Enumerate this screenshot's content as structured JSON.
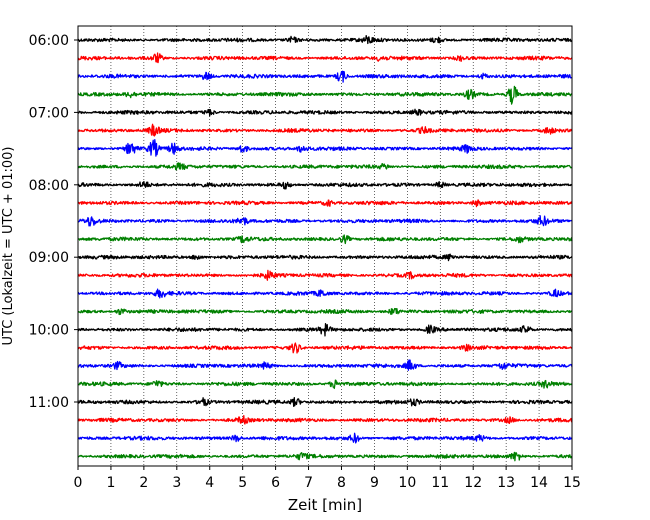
{
  "chart_data": {
    "type": "line",
    "xlabel": "Zeit  [min]",
    "ylabel": "UTC (Lokalzeit = UTC + 01:00)",
    "xlim": [
      0,
      15
    ],
    "x_ticks": [
      "0",
      "1",
      "2",
      "3",
      "4",
      "5",
      "6",
      "7",
      "8",
      "9",
      "10",
      "11",
      "12",
      "13",
      "14",
      "15"
    ],
    "y_ticks": [
      {
        "label": "06:00",
        "trace": 0
      },
      {
        "label": "07:00",
        "trace": 4
      },
      {
        "label": "08:00",
        "trace": 8
      },
      {
        "label": "09:00",
        "trace": 12
      },
      {
        "label": "10:00",
        "trace": 16
      },
      {
        "label": "11:00",
        "trace": 20
      }
    ],
    "grid": "vertical-dotted",
    "trace_count": 24,
    "trace_minutes": 15,
    "traces": [
      {
        "color": "#000000",
        "events": [
          [
            6.5,
            0.45
          ],
          [
            8.8,
            0.5
          ],
          [
            10.9,
            0.4
          ]
        ]
      },
      {
        "color": "#ff0000",
        "events": [
          [
            2.4,
            0.7
          ],
          [
            9.2,
            0.4
          ],
          [
            11.6,
            0.35
          ]
        ]
      },
      {
        "color": "#0000ff",
        "events": [
          [
            3.9,
            0.6
          ],
          [
            8.0,
            1.0
          ],
          [
            12.3,
            0.4
          ]
        ]
      },
      {
        "color": "#008000",
        "events": [
          [
            1.6,
            0.4
          ],
          [
            11.9,
            0.7
          ],
          [
            13.2,
            1.6
          ]
        ]
      },
      {
        "color": "#000000",
        "events": [
          [
            4.0,
            0.45
          ],
          [
            10.3,
            0.4
          ]
        ]
      },
      {
        "color": "#ff0000",
        "events": [
          [
            2.3,
            0.8
          ],
          [
            10.5,
            0.4
          ],
          [
            14.3,
            0.5
          ]
        ]
      },
      {
        "color": "#0000ff",
        "events": [
          [
            1.6,
            1.0
          ],
          [
            2.3,
            1.3
          ],
          [
            2.9,
            0.8
          ],
          [
            5.0,
            0.6
          ],
          [
            6.8,
            0.5
          ],
          [
            11.8,
            0.5
          ]
        ]
      },
      {
        "color": "#008000",
        "events": [
          [
            3.1,
            0.4
          ],
          [
            9.3,
            0.35
          ]
        ]
      },
      {
        "color": "#000000",
        "events": [
          [
            2.0,
            0.5
          ],
          [
            6.3,
            0.5
          ],
          [
            11.0,
            0.45
          ]
        ]
      },
      {
        "color": "#ff0000",
        "events": [
          [
            7.6,
            0.4
          ],
          [
            12.1,
            0.45
          ]
        ]
      },
      {
        "color": "#0000ff",
        "events": [
          [
            0.4,
            0.7
          ],
          [
            5.0,
            0.6
          ],
          [
            14.1,
            0.7
          ]
        ]
      },
      {
        "color": "#008000",
        "events": [
          [
            5.0,
            0.45
          ],
          [
            8.1,
            0.6
          ],
          [
            13.4,
            0.4
          ]
        ]
      },
      {
        "color": "#000000",
        "events": [
          [
            3.6,
            0.4
          ],
          [
            11.3,
            0.45
          ]
        ]
      },
      {
        "color": "#ff0000",
        "events": [
          [
            5.8,
            0.6
          ],
          [
            10.1,
            0.4
          ]
        ]
      },
      {
        "color": "#0000ff",
        "events": [
          [
            2.5,
            0.6
          ],
          [
            7.4,
            0.45
          ],
          [
            14.5,
            0.5
          ]
        ]
      },
      {
        "color": "#008000",
        "events": [
          [
            1.3,
            0.45
          ],
          [
            9.6,
            0.5
          ]
        ]
      },
      {
        "color": "#000000",
        "events": [
          [
            7.5,
            0.8
          ],
          [
            10.7,
            0.6
          ],
          [
            13.6,
            0.55
          ]
        ]
      },
      {
        "color": "#ff0000",
        "events": [
          [
            6.6,
            0.8
          ],
          [
            11.8,
            0.4
          ]
        ]
      },
      {
        "color": "#0000ff",
        "events": [
          [
            1.2,
            0.5
          ],
          [
            5.7,
            0.45
          ],
          [
            10.1,
            0.9
          ],
          [
            12.9,
            0.45
          ]
        ]
      },
      {
        "color": "#008000",
        "events": [
          [
            2.4,
            0.5
          ],
          [
            7.8,
            0.7
          ],
          [
            14.2,
            0.45
          ]
        ]
      },
      {
        "color": "#000000",
        "events": [
          [
            3.8,
            0.55
          ],
          [
            6.6,
            0.6
          ],
          [
            10.2,
            0.45
          ]
        ]
      },
      {
        "color": "#ff0000",
        "events": [
          [
            5.0,
            0.5
          ],
          [
            13.1,
            0.4
          ]
        ]
      },
      {
        "color": "#0000ff",
        "events": [
          [
            4.8,
            0.5
          ],
          [
            8.4,
            0.7
          ],
          [
            12.2,
            0.4
          ]
        ]
      },
      {
        "color": "#008000",
        "events": [
          [
            6.8,
            0.45
          ],
          [
            13.3,
            0.7
          ]
        ]
      }
    ]
  }
}
